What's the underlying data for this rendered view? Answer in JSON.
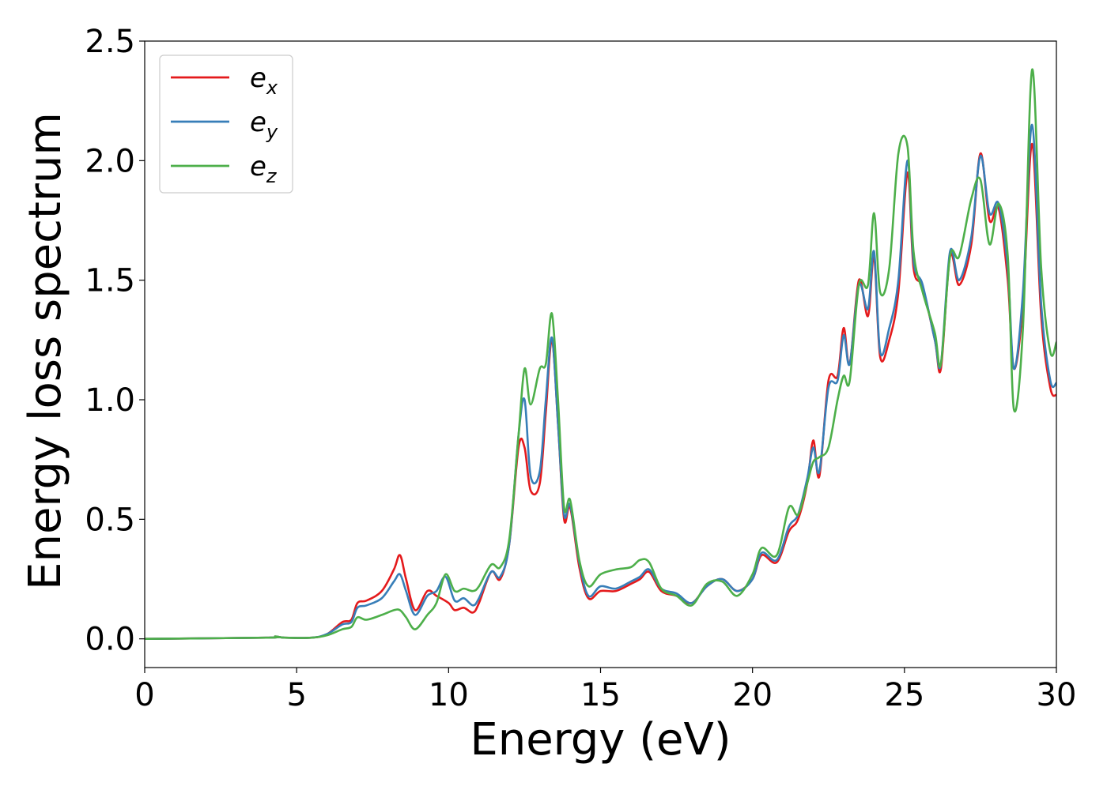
{
  "chart_data": {
    "type": "line",
    "title": "",
    "xlabel": "Energy (eV)",
    "ylabel": "Energy loss spectrum",
    "xlim": [
      0,
      30
    ],
    "ylim": [
      -0.12,
      2.5
    ],
    "xticks": [
      "0",
      "5",
      "10",
      "15",
      "20",
      "25",
      "30"
    ],
    "yticks": [
      "0.0",
      "0.5",
      "1.0",
      "1.5",
      "2.0",
      "2.5"
    ],
    "grid": false,
    "legend_position": "top-left",
    "series": [
      {
        "name": "e_x",
        "label_base": "e",
        "label_sub": "x",
        "color": "#e41a1c",
        "x": [
          0,
          4,
          4.3,
          4.6,
          5.5,
          6,
          6.5,
          6.8,
          7,
          7.3,
          7.8,
          8.2,
          8.4,
          8.6,
          8.9,
          9.3,
          9.6,
          10,
          10.2,
          10.5,
          10.8,
          11,
          11.4,
          11.7,
          12,
          12.3,
          12.5,
          12.7,
          13,
          13.2,
          13.4,
          13.6,
          13.8,
          14,
          14.3,
          14.6,
          15,
          15.5,
          16,
          16.3,
          16.6,
          17,
          17.5,
          18,
          18.5,
          19,
          19.5,
          20,
          20.3,
          20.8,
          21.2,
          21.5,
          21.8,
          22,
          22.2,
          22.5,
          22.8,
          23,
          23.2,
          23.5,
          23.8,
          24,
          24.2,
          24.5,
          24.8,
          25.1,
          25.3,
          25.6,
          26,
          26.2,
          26.5,
          26.8,
          27.2,
          27.5,
          27.8,
          28.1,
          28.4,
          28.6,
          28.9,
          29.2,
          29.5,
          29.8,
          30
        ],
        "y": [
          0,
          0.005,
          0.01,
          0.005,
          0.005,
          0.02,
          0.07,
          0.08,
          0.15,
          0.16,
          0.2,
          0.29,
          0.35,
          0.25,
          0.12,
          0.2,
          0.18,
          0.15,
          0.12,
          0.13,
          0.11,
          0.15,
          0.28,
          0.25,
          0.4,
          0.8,
          0.8,
          0.62,
          0.65,
          0.95,
          1.25,
          0.9,
          0.5,
          0.55,
          0.3,
          0.17,
          0.2,
          0.2,
          0.23,
          0.25,
          0.28,
          0.2,
          0.18,
          0.15,
          0.22,
          0.25,
          0.2,
          0.25,
          0.35,
          0.32,
          0.45,
          0.5,
          0.65,
          0.83,
          0.68,
          1.08,
          1.1,
          1.3,
          1.15,
          1.5,
          1.35,
          1.6,
          1.18,
          1.25,
          1.45,
          1.95,
          1.55,
          1.47,
          1.25,
          1.13,
          1.6,
          1.48,
          1.65,
          2.03,
          1.75,
          1.8,
          1.5,
          1.13,
          1.4,
          2.07,
          1.35,
          1.05,
          1.02
        ]
      },
      {
        "name": "e_y",
        "label_base": "e",
        "label_sub": "y",
        "color": "#377eb8",
        "x": [
          0,
          4,
          4.3,
          4.6,
          5.5,
          6,
          6.5,
          6.8,
          7,
          7.3,
          7.8,
          8.2,
          8.4,
          8.6,
          8.9,
          9.3,
          9.6,
          9.9,
          10.2,
          10.5,
          10.8,
          11,
          11.4,
          11.7,
          12,
          12.3,
          12.5,
          12.7,
          13,
          13.2,
          13.4,
          13.6,
          13.8,
          14,
          14.3,
          14.6,
          15,
          15.5,
          16,
          16.3,
          16.6,
          17,
          17.5,
          18,
          18.5,
          19,
          19.5,
          20,
          20.3,
          20.8,
          21.2,
          21.5,
          21.8,
          22,
          22.2,
          22.5,
          22.8,
          23,
          23.2,
          23.5,
          23.8,
          24,
          24.2,
          24.5,
          24.8,
          25.1,
          25.3,
          25.6,
          26,
          26.2,
          26.5,
          26.8,
          27.2,
          27.5,
          27.8,
          28.1,
          28.4,
          28.6,
          28.9,
          29.2,
          29.5,
          29.8,
          30
        ],
        "y": [
          0,
          0.005,
          0.01,
          0.005,
          0.005,
          0.02,
          0.06,
          0.07,
          0.13,
          0.14,
          0.17,
          0.24,
          0.27,
          0.2,
          0.1,
          0.18,
          0.2,
          0.26,
          0.16,
          0.17,
          0.14,
          0.17,
          0.28,
          0.26,
          0.4,
          0.85,
          1.0,
          0.68,
          0.7,
          1.0,
          1.26,
          0.9,
          0.52,
          0.56,
          0.32,
          0.18,
          0.22,
          0.21,
          0.24,
          0.26,
          0.29,
          0.21,
          0.19,
          0.15,
          0.22,
          0.25,
          0.2,
          0.25,
          0.36,
          0.33,
          0.47,
          0.52,
          0.67,
          0.8,
          0.7,
          1.05,
          1.08,
          1.27,
          1.15,
          1.48,
          1.38,
          1.62,
          1.2,
          1.3,
          1.5,
          2.0,
          1.58,
          1.48,
          1.25,
          1.15,
          1.62,
          1.5,
          1.68,
          2.02,
          1.78,
          1.82,
          1.55,
          1.13,
          1.45,
          2.15,
          1.4,
          1.08,
          1.07
        ]
      },
      {
        "name": "e_z",
        "label_base": "e",
        "label_sub": "z",
        "color": "#4daf4a",
        "x": [
          0,
          4,
          4.3,
          4.6,
          5.5,
          6,
          6.5,
          6.8,
          7,
          7.3,
          7.8,
          8.2,
          8.4,
          8.6,
          8.9,
          9.3,
          9.6,
          9.9,
          10.2,
          10.5,
          10.8,
          11,
          11.4,
          11.7,
          12,
          12.3,
          12.5,
          12.7,
          13,
          13.2,
          13.4,
          13.6,
          13.8,
          14,
          14.3,
          14.6,
          15,
          15.5,
          16,
          16.3,
          16.6,
          17,
          17.5,
          18,
          18.5,
          19,
          19.5,
          20,
          20.3,
          20.8,
          21.2,
          21.5,
          21.8,
          22,
          22.2,
          22.5,
          22.8,
          23,
          23.2,
          23.5,
          23.8,
          24,
          24.2,
          24.5,
          24.8,
          25.1,
          25.3,
          25.6,
          26,
          26.2,
          26.5,
          26.8,
          27.2,
          27.5,
          27.8,
          28.1,
          28.4,
          28.6,
          28.9,
          29.2,
          29.5,
          29.8,
          30
        ],
        "y": [
          0,
          0.005,
          0.01,
          0.005,
          0.005,
          0.015,
          0.04,
          0.05,
          0.09,
          0.08,
          0.1,
          0.12,
          0.12,
          0.09,
          0.04,
          0.1,
          0.15,
          0.27,
          0.2,
          0.21,
          0.2,
          0.22,
          0.31,
          0.3,
          0.42,
          0.85,
          1.13,
          0.98,
          1.13,
          1.15,
          1.36,
          1.0,
          0.55,
          0.58,
          0.33,
          0.22,
          0.27,
          0.29,
          0.3,
          0.33,
          0.32,
          0.21,
          0.18,
          0.14,
          0.23,
          0.24,
          0.18,
          0.27,
          0.38,
          0.35,
          0.55,
          0.52,
          0.65,
          0.74,
          0.76,
          0.8,
          1.0,
          1.1,
          1.08,
          1.48,
          1.48,
          1.78,
          1.45,
          1.55,
          2.03,
          2.06,
          1.62,
          1.45,
          1.28,
          1.15,
          1.6,
          1.6,
          1.84,
          1.92,
          1.65,
          1.82,
          1.6,
          0.96,
          1.3,
          2.38,
          1.55,
          1.2,
          1.24
        ]
      }
    ]
  }
}
